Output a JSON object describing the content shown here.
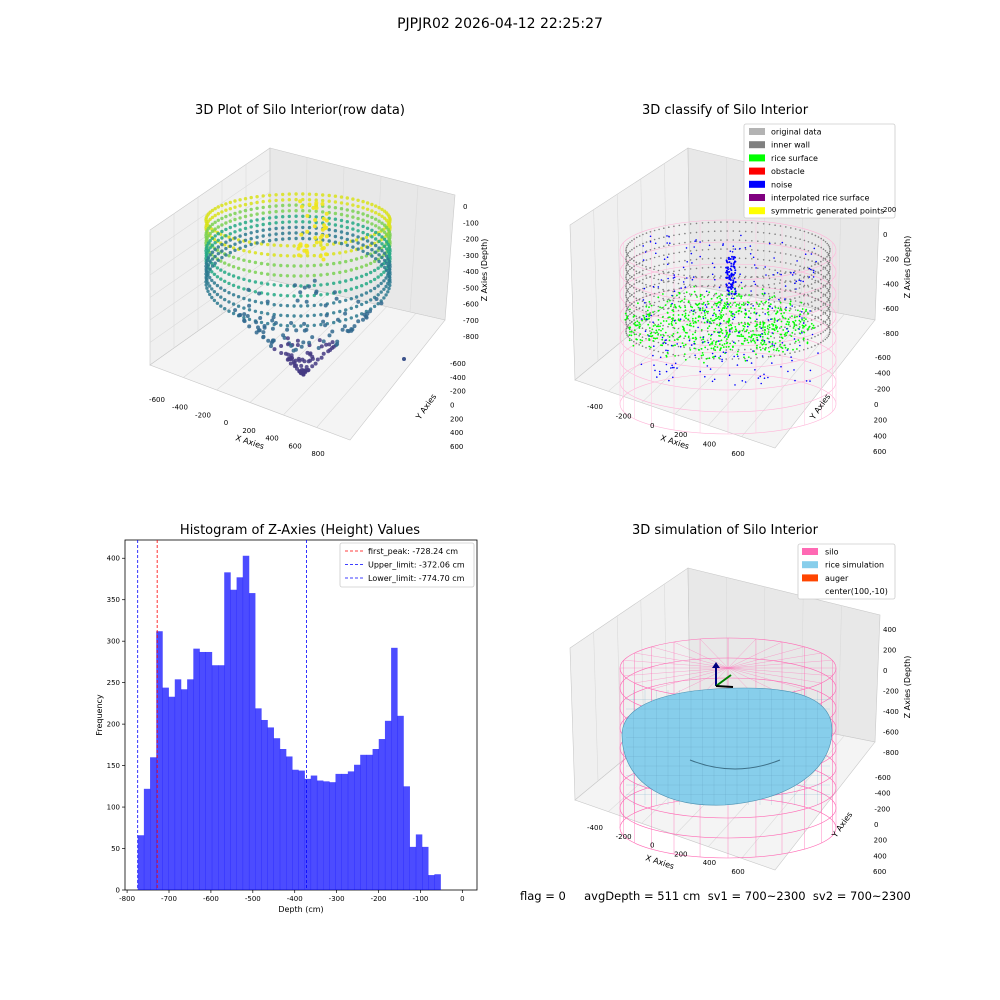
{
  "suptitle": "PJPJR02 2026-04-12 22:25:27",
  "panels": {
    "raw": {
      "title": "3D Plot of Silo Interior(row data)",
      "x_label": "X Axies",
      "y_label": "Y Axies",
      "z_label": "Z Axies (Depth)",
      "x_ticks": [
        "-600",
        "-400",
        "-200",
        "0",
        "200",
        "400",
        "600",
        "800"
      ],
      "y_ticks": [
        "-600",
        "-400",
        "-200",
        "0",
        "200",
        "400",
        "600"
      ],
      "z_ticks": [
        "0",
        "-100",
        "-200",
        "-300",
        "-400",
        "-500",
        "-600",
        "-700",
        "-800"
      ]
    },
    "classify": {
      "title": "3D classify of Silo Interior",
      "x_label": "X Axies",
      "y_label": "Y Axies",
      "z_label": "Z Axies (Depth)",
      "x_ticks": [
        "-400",
        "-200",
        "0",
        "200",
        "400",
        "600"
      ],
      "y_ticks": [
        "-600",
        "-400",
        "-200",
        "0",
        "200",
        "400",
        "600"
      ],
      "z_ticks": [
        "200",
        "0",
        "-200",
        "-400",
        "-600",
        "-800"
      ],
      "legend": [
        {
          "label": "original data",
          "color": "#b3b3b3"
        },
        {
          "label": "inner wall",
          "color": "#808080"
        },
        {
          "label": "rice surface",
          "color": "#00ff00"
        },
        {
          "label": "obstacle",
          "color": "#ff0000"
        },
        {
          "label": "noise",
          "color": "#0000ff"
        },
        {
          "label": "interpolated rice surface",
          "color": "#800080"
        },
        {
          "label": "symmetric generated points",
          "color": "#ffff00"
        }
      ]
    },
    "simulation": {
      "title": "3D simulation of Silo Interior",
      "x_label": "X Axies",
      "y_label": "Y Axies",
      "z_label": "Z Axies (Depth)",
      "x_ticks": [
        "-400",
        "-200",
        "0",
        "200",
        "400",
        "600"
      ],
      "y_ticks": [
        "-600",
        "-400",
        "-200",
        "0",
        "200",
        "400",
        "600"
      ],
      "z_ticks": [
        "400",
        "200",
        "0",
        "-200",
        "-400",
        "-600",
        "-800"
      ],
      "legend": [
        {
          "label": "silo",
          "color": "#ff69b4"
        },
        {
          "label": "rice simulation",
          "color": "#87ceeb"
        },
        {
          "label": "auger",
          "color": "#ff4500"
        },
        {
          "label": "center(100,-10)",
          "color": ""
        }
      ]
    }
  },
  "chart_data": {
    "type": "bar",
    "title": "Histogram of Z-Axies (Height) Values",
    "xlabel": "Depth (cm)",
    "ylabel": "Frequency",
    "xlim": [
      -805,
      35
    ],
    "ylim": [
      0,
      422
    ],
    "x_ticks": [
      -800,
      -700,
      -600,
      -500,
      -400,
      -300,
      -200,
      -100,
      0
    ],
    "y_ticks": [
      0,
      50,
      100,
      150,
      200,
      250,
      300,
      350,
      400
    ],
    "bin_start": -774.7,
    "bin_width": 14.75,
    "values": [
      66,
      122,
      160,
      312,
      244,
      233,
      254,
      242,
      254,
      291,
      287,
      287,
      271,
      271,
      383,
      362,
      377,
      403,
      358,
      219,
      205,
      196,
      183,
      170,
      161,
      145,
      144,
      134,
      138,
      132,
      131,
      130,
      140,
      140,
      143,
      151,
      163,
      163,
      170,
      182,
      204,
      292,
      210,
      125,
      52,
      67,
      52,
      18,
      19
    ],
    "bar_color": "#0000ff",
    "bar_opacity": 0.7,
    "reference_lines": [
      {
        "label": "first_peak: -728.24 cm",
        "value": -728.24,
        "color": "#ff0000"
      },
      {
        "label": "Upper_limit: -372.06 cm",
        "value": -372.06,
        "color": "#0000ff"
      },
      {
        "label": "Lower_limit: -774.70 cm",
        "value": -774.7,
        "color": "#0000ff"
      }
    ],
    "legend_position": "upper right"
  },
  "footer": "flag = 0     avgDepth = 511 cm  sv1 = 700~2300  sv2 = 700~2300"
}
